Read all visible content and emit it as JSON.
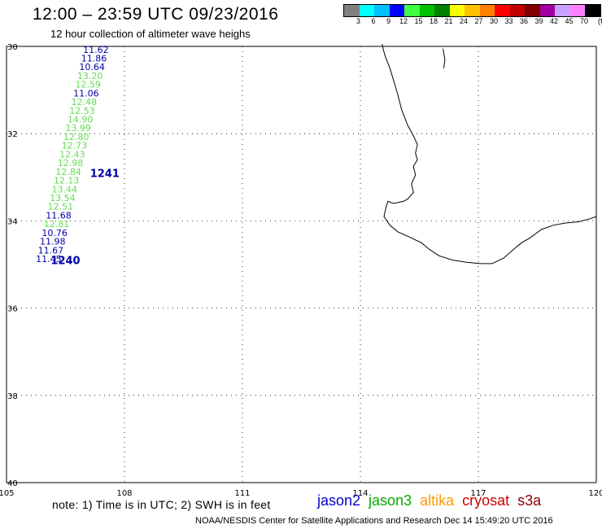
{
  "header": {
    "title": "12:00 – 23:59 UTC 09/23/2016",
    "subtitle": "12 hour collection of altimeter wave heighs"
  },
  "legend": {
    "colors": [
      "#808080",
      "#00ffff",
      "#00bfff",
      "#0000ff",
      "#40ff40",
      "#00c000",
      "#008000",
      "#ffff00",
      "#ffc000",
      "#ff8000",
      "#ff0000",
      "#c00000",
      "#800000",
      "#a000a0",
      "#c8a0ff",
      "#ff80ff",
      "#000000"
    ],
    "labels": [
      "3",
      "6",
      "9",
      "12",
      "15",
      "18",
      "21",
      "24",
      "27",
      "30",
      "33",
      "36",
      "39",
      "42",
      "45",
      "70",
      "(ft)"
    ]
  },
  "map": {
    "lon_range": [
      105,
      120
    ],
    "lat_range": [
      -40,
      -30
    ],
    "lat_ticks": [
      "30",
      "32",
      "34",
      "36",
      "38",
      "40"
    ],
    "lon_ticks": [
      "105",
      "108",
      "111",
      "114",
      "117",
      "120"
    ],
    "track_label_color_blue": "#0000aa",
    "track_label_color_green": "#66dd55"
  },
  "chart_data": {
    "type": "scatter",
    "observations": [
      {
        "lon": 107.6,
        "lat": -30.07,
        "value": "11.62",
        "color": "blue"
      },
      {
        "lon": 107.55,
        "lat": -30.27,
        "value": "11.86",
        "color": "blue"
      },
      {
        "lon": 107.5,
        "lat": -30.47,
        "value": "10.64",
        "color": "blue"
      },
      {
        "lon": 107.45,
        "lat": -30.67,
        "value": "13.20",
        "color": "green"
      },
      {
        "lon": 107.4,
        "lat": -30.87,
        "value": "12.59",
        "color": "green"
      },
      {
        "lon": 107.35,
        "lat": -31.07,
        "value": "11.06",
        "color": "blue"
      },
      {
        "lon": 107.3,
        "lat": -31.27,
        "value": "12.48",
        "color": "green"
      },
      {
        "lon": 107.25,
        "lat": -31.47,
        "value": "12.53",
        "color": "green"
      },
      {
        "lon": 107.2,
        "lat": -31.67,
        "value": "14.90",
        "color": "green"
      },
      {
        "lon": 107.15,
        "lat": -31.87,
        "value": "13.99",
        "color": "green"
      },
      {
        "lon": 107.1,
        "lat": -32.07,
        "value": "12.80",
        "color": "green"
      },
      {
        "lon": 107.05,
        "lat": -32.27,
        "value": "12.73",
        "color": "green"
      },
      {
        "lon": 107.0,
        "lat": -32.47,
        "value": "12.43",
        "color": "green"
      },
      {
        "lon": 106.95,
        "lat": -32.67,
        "value": "12.98",
        "color": "green"
      },
      {
        "lon": 106.9,
        "lat": -32.87,
        "value": "12.84",
        "color": "green"
      },
      {
        "lon": 106.85,
        "lat": -33.07,
        "value": "12.13",
        "color": "green"
      },
      {
        "lon": 106.8,
        "lat": -33.27,
        "value": "13.44",
        "color": "green"
      },
      {
        "lon": 106.75,
        "lat": -33.47,
        "value": "13.54",
        "color": "green"
      },
      {
        "lon": 106.7,
        "lat": -33.67,
        "value": "12.51",
        "color": "green"
      },
      {
        "lon": 106.65,
        "lat": -33.87,
        "value": "11.68",
        "color": "blue"
      },
      {
        "lon": 106.6,
        "lat": -34.07,
        "value": "12.81",
        "color": "green"
      },
      {
        "lon": 106.55,
        "lat": -34.27,
        "value": "10.76",
        "color": "blue"
      },
      {
        "lon": 106.5,
        "lat": -34.47,
        "value": "11.98",
        "color": "blue"
      },
      {
        "lon": 106.45,
        "lat": -34.67,
        "value": "11.67",
        "color": "blue"
      },
      {
        "lon": 106.4,
        "lat": -34.87,
        "value": "11.45",
        "color": "blue"
      }
    ],
    "pass_labels": [
      {
        "lon": 107.5,
        "lat": -32.9,
        "text": "1241"
      },
      {
        "lon": 106.5,
        "lat": -34.9,
        "text": "1240"
      }
    ],
    "coastline": [
      [
        114.55,
        -29.95
      ],
      [
        114.62,
        -30.2
      ],
      [
        114.75,
        -30.5
      ],
      [
        114.85,
        -30.8
      ],
      [
        114.95,
        -31.1
      ],
      [
        115.05,
        -31.45
      ],
      [
        115.2,
        -31.8
      ],
      [
        115.35,
        -32.05
      ],
      [
        115.45,
        -32.25
      ],
      [
        115.4,
        -32.45
      ],
      [
        115.45,
        -32.6
      ],
      [
        115.35,
        -32.75
      ],
      [
        115.4,
        -32.95
      ],
      [
        115.3,
        -33.15
      ],
      [
        115.35,
        -33.35
      ],
      [
        115.2,
        -33.5
      ],
      [
        115.1,
        -33.55
      ],
      [
        114.85,
        -33.6
      ],
      [
        114.7,
        -33.55
      ],
      [
        114.65,
        -33.7
      ],
      [
        114.6,
        -33.9
      ],
      [
        114.75,
        -34.1
      ],
      [
        114.95,
        -34.25
      ],
      [
        115.2,
        -34.35
      ],
      [
        115.55,
        -34.5
      ],
      [
        115.75,
        -34.65
      ],
      [
        116.0,
        -34.8
      ],
      [
        116.35,
        -34.9
      ],
      [
        116.7,
        -34.95
      ],
      [
        117.05,
        -34.98
      ],
      [
        117.35,
        -34.98
      ],
      [
        117.65,
        -34.85
      ],
      [
        117.9,
        -34.65
      ],
      [
        118.1,
        -34.5
      ],
      [
        118.3,
        -34.4
      ],
      [
        118.6,
        -34.2
      ],
      [
        118.9,
        -34.1
      ],
      [
        119.2,
        -34.05
      ],
      [
        119.55,
        -34.02
      ],
      [
        119.85,
        -33.95
      ],
      [
        120.0,
        -33.9
      ]
    ],
    "island": [
      [
        116.1,
        -30.05
      ],
      [
        116.15,
        -30.3
      ],
      [
        116.12,
        -30.5
      ]
    ]
  },
  "footer": {
    "note": "note:  1) Time is in UTC;  2) SWH is in feet",
    "satellites": [
      {
        "name": "jason2",
        "color": "#0000cc"
      },
      {
        "name": "jason3",
        "color": "#00aa00"
      },
      {
        "name": "altika",
        "color": "#ff9900"
      },
      {
        "name": "cryosat",
        "color": "#cc0000"
      },
      {
        "name": "s3a",
        "color": "#880000"
      }
    ],
    "credit": "NOAA/NESDIS Center for Satellite Applications and Research    Dec 14 15:49:20 UTC 2016"
  }
}
